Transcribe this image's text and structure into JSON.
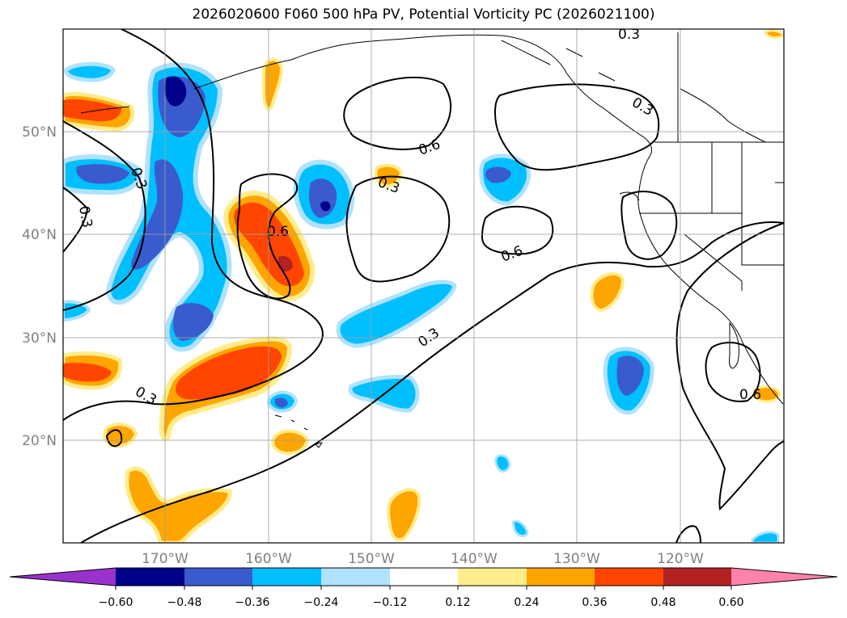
{
  "title": "2026020600 F060 500 hPa PV, Potential Vorticity PC (2026021100)",
  "map": {
    "lat_ticks": [
      "50°N",
      "40°N",
      "30°N",
      "20°N"
    ],
    "lon_ticks": [
      "170°W",
      "160°W",
      "150°W",
      "140°W",
      "130°W",
      "120°W"
    ],
    "contour_labels": [
      "0.3",
      "0.3",
      "0.3",
      "0.6",
      "0.3",
      "0.6",
      "0.6",
      "0.3",
      "0.3",
      "0.6",
      "0.3"
    ]
  },
  "colorbar": {
    "colors": [
      "#9932cc",
      "#00008b",
      "#3a5bcd",
      "#00bfff",
      "#b0e2ff",
      "#ffffff",
      "#ffec8b",
      "#ffa500",
      "#ff4500",
      "#b22222",
      "#ff82ab"
    ],
    "ticks": [
      "−0.60",
      "−0.48",
      "−0.36",
      "−0.24",
      "−0.12",
      "0.12",
      "0.24",
      "0.36",
      "0.48",
      "0.60"
    ]
  }
}
